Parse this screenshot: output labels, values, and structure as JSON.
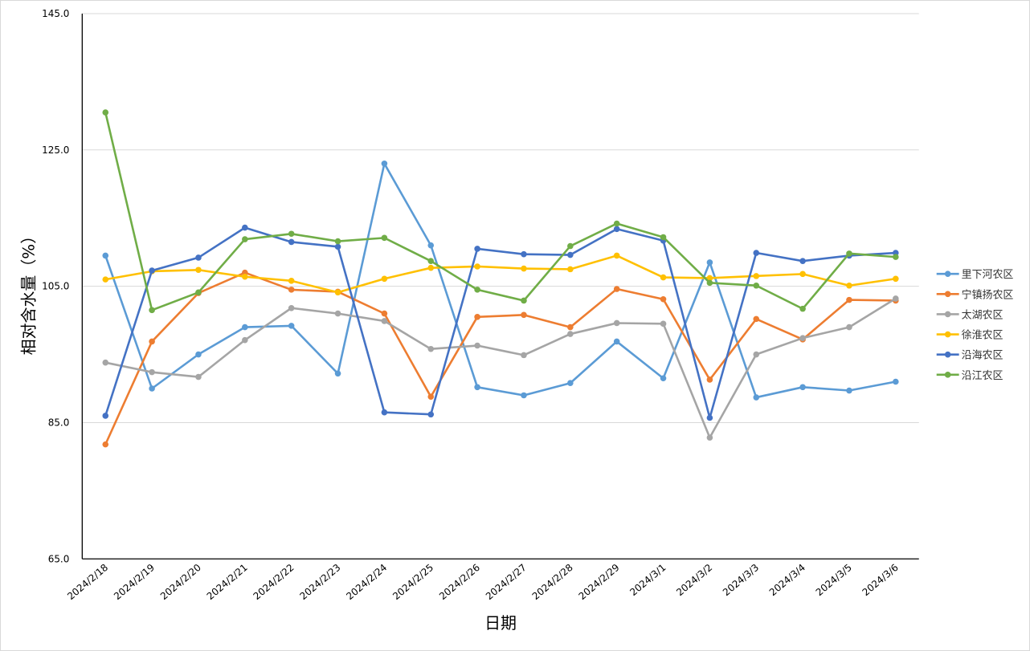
{
  "chart_data": {
    "type": "line",
    "title": "",
    "xlabel": "日期",
    "ylabel": "相对含水量（%）",
    "ylim": [
      65,
      145
    ],
    "yticks": [
      "145.0",
      "125.0",
      "105.0",
      "85.0",
      "65.0"
    ],
    "ytick_values": [
      145,
      125,
      105,
      85,
      65
    ],
    "grid": true,
    "legend_position": "right",
    "categories": [
      "2024/2/18",
      "2024/2/19",
      "2024/2/20",
      "2024/2/21",
      "2024/2/22",
      "2024/2/23",
      "2024/2/24",
      "2024/2/25",
      "2024/2/26",
      "2024/2/27",
      "2024/2/28",
      "2024/2/29",
      "2024/3/1",
      "2024/3/2",
      "2024/3/3",
      "2024/3/4",
      "2024/3/5",
      "2024/3/6"
    ],
    "series": [
      {
        "name": "里下河农区",
        "color": "#5b9bd5",
        "values": [
          109.5,
          90.0,
          95.0,
          99.0,
          99.2,
          92.2,
          123.0,
          111.0,
          90.2,
          89.0,
          90.8,
          96.9,
          91.5,
          108.5,
          88.7,
          90.2,
          89.7,
          91.0
        ]
      },
      {
        "name": "宁镇扬农区",
        "color": "#ed7d31",
        "values": [
          81.8,
          96.9,
          104.0,
          107.0,
          104.5,
          104.2,
          101.0,
          88.8,
          100.5,
          100.8,
          99.0,
          104.6,
          103.1,
          91.3,
          100.2,
          97.2,
          103.0,
          102.9
        ]
      },
      {
        "name": "太湖农区",
        "color": "#a5a5a5",
        "values": [
          93.8,
          92.4,
          91.7,
          97.1,
          101.8,
          101.0,
          99.9,
          95.8,
          96.3,
          94.9,
          98.0,
          99.6,
          99.5,
          82.8,
          95.0,
          97.4,
          99.0,
          103.2
        ]
      },
      {
        "name": "徐淮农区",
        "color": "#ffc000",
        "values": [
          106.0,
          107.2,
          107.4,
          106.4,
          105.8,
          104.1,
          106.1,
          107.7,
          107.9,
          107.6,
          107.5,
          109.5,
          106.3,
          106.2,
          106.5,
          106.8,
          105.1,
          106.1
        ]
      },
      {
        "name": "沿海农区",
        "color": "#4472c4",
        "values": [
          86.0,
          107.3,
          109.2,
          113.6,
          111.5,
          110.8,
          86.5,
          86.2,
          110.5,
          109.7,
          109.6,
          113.4,
          111.7,
          85.7,
          109.9,
          108.7,
          109.5,
          109.9
        ]
      },
      {
        "name": "沿江农区",
        "color": "#70ad47",
        "values": [
          130.5,
          101.5,
          104.1,
          111.9,
          112.7,
          111.6,
          112.1,
          108.7,
          104.5,
          102.9,
          110.9,
          114.2,
          112.2,
          105.5,
          105.1,
          101.7,
          109.8,
          109.3
        ]
      }
    ]
  }
}
